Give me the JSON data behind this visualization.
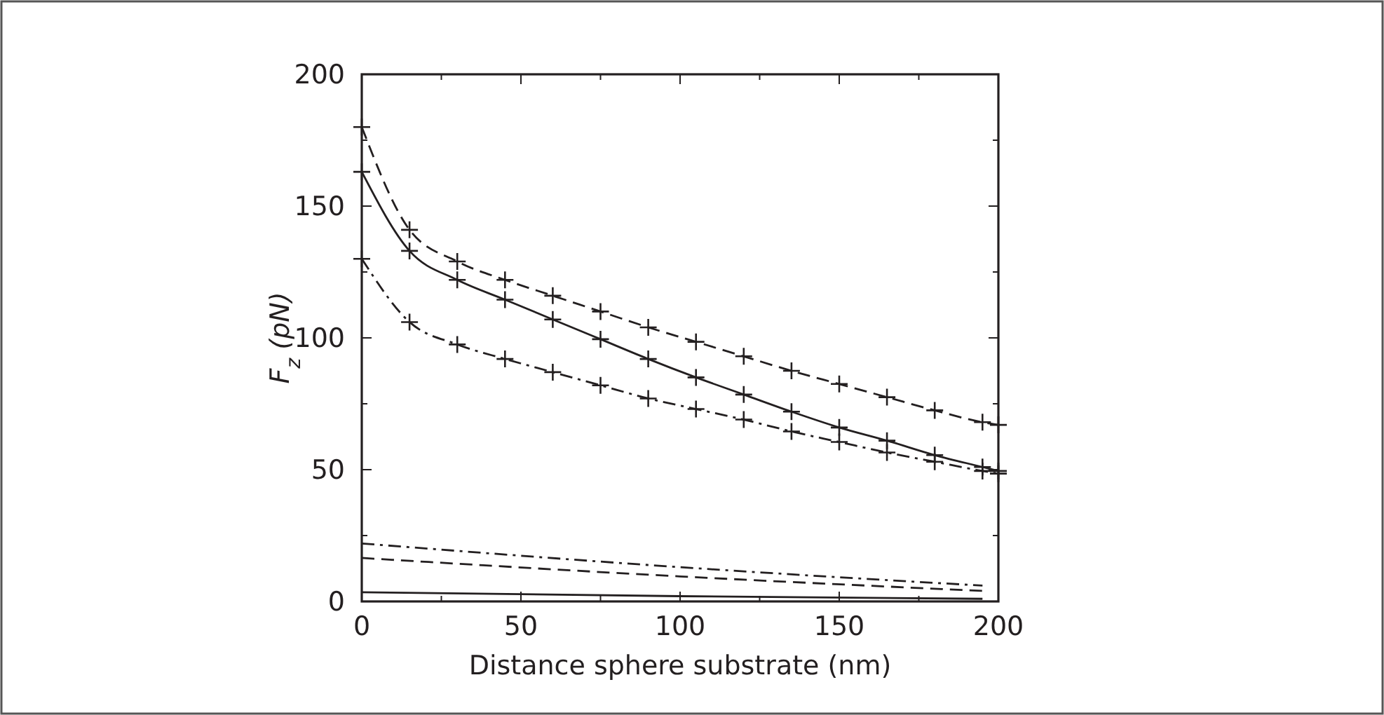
{
  "chart_data": {
    "type": "line",
    "xlabel": "Distance sphere substrate (nm)",
    "ylabel": "F$_{z}$ (pN)",
    "xlim": [
      0,
      200
    ],
    "ylim": [
      0,
      200
    ],
    "xticks": [
      0,
      {
        "value": 25,
        "label": null
      },
      50,
      {
        "value": 75,
        "label": null
      },
      100,
      {
        "value": 125,
        "label": null
      },
      150,
      {
        "value": 175,
        "label": null
      },
      200
    ],
    "yticks": [
      0,
      {
        "value": 25,
        "label": null
      },
      50,
      {
        "value": 75,
        "label": null
      },
      100,
      {
        "value": 125,
        "label": null
      },
      150,
      {
        "value": 175,
        "label": null
      },
      200
    ],
    "grid": false,
    "series": [
      {
        "color": "#231f20",
        "line_style": "dashed",
        "marker": "cross",
        "x": [
          0,
          15,
          30,
          45,
          60,
          75,
          90,
          105,
          120,
          135,
          150,
          165,
          180,
          195,
          200
        ],
        "values": [
          180,
          141,
          129,
          122,
          116,
          110,
          104,
          98.5,
          93,
          87.5,
          82.5,
          77.5,
          72.5,
          68,
          67
        ]
      },
      {
        "color": "#231f20",
        "line_style": "solid",
        "marker": "cross",
        "x": [
          0,
          15,
          30,
          45,
          60,
          75,
          90,
          105,
          120,
          135,
          150,
          165,
          180,
          195,
          200
        ],
        "values": [
          163,
          133,
          122,
          114.5,
          107,
          99.5,
          92,
          85,
          78.5,
          72,
          66,
          61,
          55.5,
          51,
          49.5
        ]
      },
      {
        "color": "#231f20",
        "line_style": "dashdot",
        "marker": "cross",
        "x": [
          0,
          15,
          30,
          45,
          60,
          75,
          90,
          105,
          120,
          135,
          150,
          165,
          180,
          195,
          200
        ],
        "values": [
          130,
          106,
          97.5,
          92,
          87,
          82,
          77,
          73,
          69,
          64.5,
          60.5,
          56.5,
          53,
          49.5,
          48.5
        ]
      },
      {
        "color": "#231f20",
        "line_style": "dashdot",
        "marker": "none",
        "x": [
          0,
          100,
          195
        ],
        "values": [
          22,
          13,
          6
        ]
      },
      {
        "color": "#231f20",
        "line_style": "dashed",
        "marker": "none",
        "x": [
          0,
          100,
          195
        ],
        "values": [
          16.5,
          9.5,
          4
        ]
      },
      {
        "color": "#231f20",
        "line_style": "solid",
        "marker": "none",
        "x": [
          0,
          100,
          195
        ],
        "values": [
          3.5,
          2,
          1
        ]
      }
    ]
  }
}
